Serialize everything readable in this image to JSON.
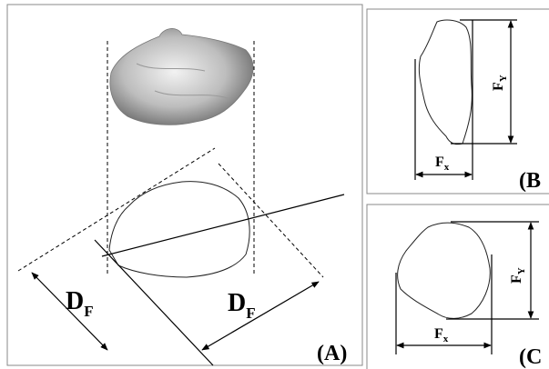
{
  "panels": {
    "A": {
      "label": "(A)",
      "dims": [
        {
          "main": "D",
          "sub": "F"
        },
        {
          "main": "D",
          "sub": "F"
        }
      ]
    },
    "B": {
      "label": "(B",
      "width": {
        "main": "F",
        "sub": "x"
      },
      "height": {
        "main": "F",
        "sub": "Y"
      }
    },
    "C": {
      "label": "(C",
      "width": {
        "main": "F",
        "sub": "x"
      },
      "height": {
        "main": "F",
        "sub": "Y"
      }
    }
  }
}
